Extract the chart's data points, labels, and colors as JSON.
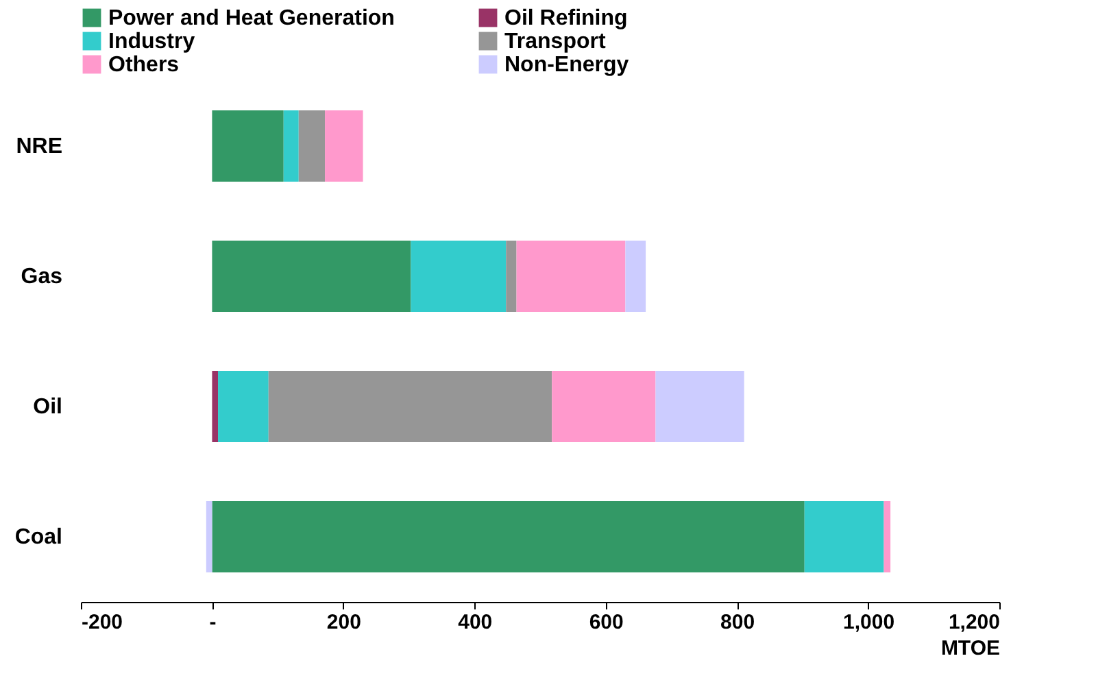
{
  "chart_data": {
    "type": "bar",
    "orientation": "horizontal",
    "stacked": true,
    "xlabel": "MTOE",
    "categories": [
      "NRE",
      "Gas",
      "Oil",
      "Coal"
    ],
    "series": [
      {
        "name": "Power and Heat Generation",
        "color": "#339966",
        "values": [
          109,
          303,
          null,
          903
        ]
      },
      {
        "name": "Oil Refining",
        "color": "#993366",
        "values": [
          null,
          null,
          9,
          null
        ]
      },
      {
        "name": "Industry",
        "color": "#33cccc",
        "values": [
          23,
          145,
          77,
          121
        ]
      },
      {
        "name": "Transport",
        "color": "#969696",
        "values": [
          40,
          16,
          432,
          null
        ]
      },
      {
        "name": "Others",
        "color": "#ff99cc",
        "values": [
          58,
          166,
          158,
          10
        ]
      },
      {
        "name": "Non-Energy",
        "color": "#ccccff",
        "values": [
          null,
          31,
          135,
          -9
        ]
      }
    ],
    "xlim": [
      -200,
      1200
    ],
    "xticks": [
      -200,
      {
        "value": 0,
        "label": "-"
      },
      200,
      400,
      600,
      800,
      {
        "value": 1000,
        "label": "1,000"
      },
      {
        "value": 1200,
        "label": "1,200"
      }
    ],
    "grid": false,
    "legend": "top"
  }
}
